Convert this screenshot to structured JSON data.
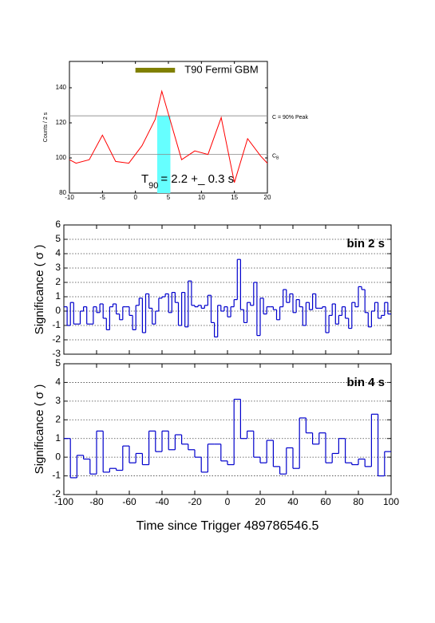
{
  "chart_data": [
    {
      "type": "line",
      "ylabel": "Counts / 2 s",
      "xlim": [
        -10,
        20
      ],
      "ylim": [
        80,
        155
      ],
      "xticks": [
        -10,
        -5,
        0,
        5,
        10,
        15,
        20
      ],
      "yticks": [
        80,
        100,
        120,
        140
      ],
      "x": [
        -10,
        -9,
        -7,
        -5,
        -3,
        -1,
        1,
        3,
        4,
        7,
        9,
        11,
        13,
        15,
        17,
        19,
        20
      ],
      "series": [
        {
          "color": "#ff0000",
          "values": [
            99,
            97,
            99,
            113,
            98,
            97,
            107,
            122,
            138,
            99,
            104,
            102,
            123,
            86,
            111,
            101,
            97
          ]
        }
      ],
      "hlines": [
        124,
        102
      ],
      "hline_color": "#888888",
      "c_label": "C = 90% Peak",
      "cb_label": {
        "text": "C",
        "sub": "B"
      },
      "t90_span": [
        3.3,
        5.3
      ],
      "t90_color": "#66ffff",
      "gbm_bar": [
        0,
        6
      ],
      "gbm_level": 150,
      "gbm_color": "#808000",
      "gbm_label": "T90 Fermi GBM",
      "t90_label": {
        "text": "T",
        "sub": "90",
        "rest": "= 2.2 +_ 0.3  s"
      }
    },
    {
      "type": "histogram",
      "label": "bin 2 s",
      "ylabel": "Significance ( σ )",
      "color": "#0000cc",
      "grid": true,
      "xlim": [
        -100,
        100
      ],
      "ylim": [
        -3,
        6
      ],
      "yticks": [
        -3,
        -2,
        -1,
        0,
        1,
        2,
        3,
        4,
        5,
        6
      ],
      "bins": [
        -100,
        -98,
        -96,
        -94,
        -92,
        -90,
        -88,
        -86,
        -84,
        -82,
        -80,
        -78,
        -76,
        -74,
        -72,
        -70,
        -68,
        -66,
        -64,
        -62,
        -60,
        -58,
        -56,
        -54,
        -52,
        -50,
        -48,
        -46,
        -44,
        -42,
        -40,
        -38,
        -36,
        -34,
        -32,
        -30,
        -28,
        -26,
        -24,
        -22,
        -20,
        -18,
        -16,
        -14,
        -12,
        -10,
        -8,
        -6,
        -4,
        -2,
        0,
        2,
        4,
        6,
        8,
        10,
        12,
        14,
        16,
        18,
        20,
        22,
        24,
        26,
        28,
        30,
        32,
        34,
        36,
        38,
        40,
        42,
        44,
        46,
        48,
        50,
        52,
        54,
        56,
        58,
        60,
        62,
        64,
        66,
        68,
        70,
        72,
        74,
        76,
        78,
        80,
        82,
        84,
        86,
        88,
        90,
        92,
        94,
        96,
        98,
        100
      ],
      "values": [
        0.3,
        -1.0,
        0.6,
        -0.9,
        -0.9,
        0.0,
        0.3,
        -0.9,
        -0.9,
        0.3,
        -0.1,
        0.5,
        -0.5,
        -1.3,
        0.3,
        0.5,
        -0.2,
        -0.6,
        0.3,
        0.3,
        -0.3,
        -1.3,
        0.4,
        0.9,
        -1.5,
        1.2,
        0.2,
        -0.9,
        0.0,
        0.9,
        1.0,
        1.2,
        -0.1,
        1.3,
        0.6,
        -1.0,
        1.3,
        -1.1,
        2.1,
        0.4,
        0.3,
        0.4,
        0.2,
        0.4,
        1.1,
        -0.8,
        -1.8,
        0.4,
        0.0,
        0.3,
        -0.4,
        0.3,
        0.8,
        3.6,
        0.1,
        -0.8,
        0.6,
        0.4,
        2.0,
        -1.7,
        0.9,
        -0.2,
        0.3,
        0.3,
        0.1,
        -0.6,
        0.3,
        1.5,
        0.6,
        1.2,
        -0.1,
        0.8,
        0.3,
        -1.0,
        0.6,
        0.1,
        1.2,
        0.2,
        0.2,
        0.3,
        -1.5,
        -0.3,
        0.5,
        -0.9,
        -0.3,
        0.3,
        -0.5,
        -1.2,
        0.6,
        0.3,
        1.7,
        1.5,
        -0.1,
        -1.1,
        0.0,
        0.6,
        -0.5,
        -0.3,
        0.6,
        -0.2
      ]
    },
    {
      "type": "histogram",
      "label": "bin 4 s",
      "ylabel": "Significance ( σ )",
      "xlabel": "Time since Trigger 489786546.5",
      "color": "#0000cc",
      "grid": true,
      "xlim": [
        -100,
        100
      ],
      "ylim": [
        -2,
        5
      ],
      "yticks": [
        -2,
        -1,
        0,
        1,
        2,
        3,
        4,
        5
      ],
      "xticks": [
        -100,
        -80,
        -60,
        -40,
        -20,
        0,
        20,
        40,
        60,
        80,
        100
      ],
      "bins": [
        -100,
        -96,
        -92,
        -88,
        -84,
        -80,
        -76,
        -72,
        -68,
        -64,
        -60,
        -56,
        -52,
        -48,
        -44,
        -40,
        -36,
        -32,
        -28,
        -24,
        -20,
        -16,
        -12,
        -8,
        -4,
        0,
        4,
        8,
        12,
        16,
        20,
        24,
        28,
        32,
        36,
        40,
        44,
        48,
        52,
        56,
        60,
        64,
        68,
        72,
        76,
        80,
        84,
        88,
        92,
        96,
        100
      ],
      "values": [
        1.0,
        -1.1,
        0.1,
        -0.1,
        -0.9,
        1.4,
        -0.8,
        -0.6,
        -0.7,
        0.6,
        -0.3,
        0.2,
        -0.4,
        1.4,
        0.3,
        1.4,
        0.4,
        1.2,
        0.7,
        0.4,
        0.0,
        -0.8,
        0.7,
        0.7,
        -0.2,
        -0.4,
        3.1,
        1.0,
        1.4,
        0.0,
        -0.3,
        0.9,
        -0.5,
        -0.9,
        0.5,
        -0.6,
        2.1,
        1.3,
        0.7,
        1.3,
        -0.3,
        0.2,
        1.0,
        -0.3,
        -0.4,
        -0.1,
        -0.5,
        2.3,
        -1.0,
        0.3
      ]
    }
  ]
}
